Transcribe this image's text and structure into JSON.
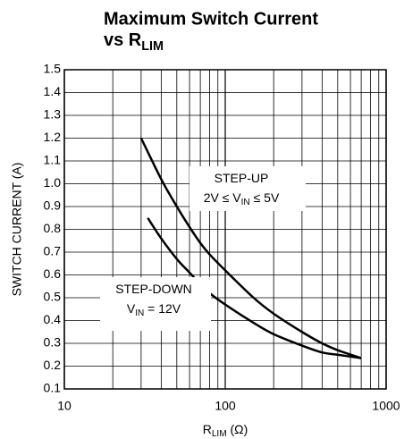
{
  "chart_data": {
    "type": "line",
    "xscale": "log",
    "grid": true,
    "title": "Maximum Switch Current",
    "title2": [
      "vs R",
      "LIM"
    ],
    "xlabel": [
      "R",
      "LIM",
      " (Ω)"
    ],
    "ylabel": "SWITCH CURRENT (A)",
    "xlim": [
      10,
      1000
    ],
    "xticks": [
      10,
      100,
      1000
    ],
    "ylim": [
      0.1,
      1.5
    ],
    "yticks": [
      0.1,
      0.2,
      0.3,
      0.4,
      0.5,
      0.6,
      0.7,
      0.8,
      0.9,
      {
        "value": 1,
        "label": "1.0"
      },
      1.1,
      1.2,
      1.3,
      1.4,
      1.5
    ],
    "series": [
      {
        "color": "#000000",
        "x": [
          30,
          40,
          50,
          60,
          70,
          80,
          100,
          150,
          200,
          300,
          400,
          500,
          700
        ],
        "values": [
          1.2,
          1.02,
          0.9,
          0.81,
          0.74,
          0.69,
          0.62,
          0.5,
          0.43,
          0.35,
          0.3,
          0.27,
          0.235
        ]
      },
      {
        "color": "#000000",
        "x": [
          33,
          40,
          50,
          60,
          70,
          80,
          100,
          150,
          200,
          300,
          400,
          500,
          700
        ],
        "values": [
          0.85,
          0.76,
          0.67,
          0.61,
          0.56,
          0.52,
          0.47,
          0.39,
          0.34,
          0.29,
          0.26,
          0.25,
          0.235
        ]
      }
    ],
    "annotations": [
      {
        "lines": [
          [
            "STEP-UP"
          ],
          [
            "2V ≤ V",
            "IN",
            " ≤ 5V"
          ]
        ]
      },
      {
        "lines": [
          [
            "STEP-DOWN"
          ],
          [
            "V",
            "IN",
            " = 12V"
          ]
        ]
      }
    ]
  }
}
